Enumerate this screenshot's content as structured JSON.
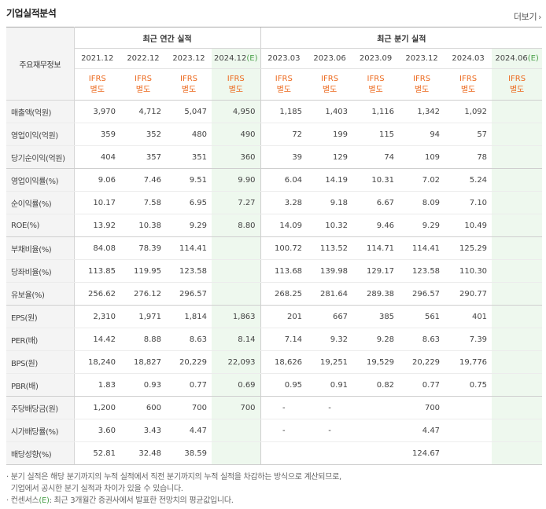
{
  "title": "기업실적분석",
  "more": {
    "label": "더보기",
    "icon": "chevron-right-icon"
  },
  "header": {
    "label": "주요재무정보",
    "annual_group": "최근 연간 실적",
    "quarter_group": "최근 분기 실적",
    "periods": [
      "2021.12",
      "2022.12",
      "2023.12",
      "2024.12",
      "2023.03",
      "2023.06",
      "2023.09",
      "2023.12",
      "2024.03",
      "2024.06"
    ],
    "estimate_mark": "(E)",
    "ifrs_line1": "IFRS",
    "ifrs_line2": "별도"
  },
  "rows": [
    {
      "label": "매출액(억원)",
      "values": [
        "3,970",
        "4,712",
        "5,047",
        "4,950",
        "1,185",
        "1,403",
        "1,116",
        "1,342",
        "1,092",
        ""
      ]
    },
    {
      "label": "영업이익(억원)",
      "values": [
        "359",
        "352",
        "480",
        "490",
        "72",
        "199",
        "115",
        "94",
        "57",
        ""
      ]
    },
    {
      "label": "당기순이익(억원)",
      "values": [
        "404",
        "357",
        "351",
        "360",
        "39",
        "129",
        "74",
        "109",
        "78",
        ""
      ]
    },
    {
      "label": "영업이익률(%)",
      "values": [
        "9.06",
        "7.46",
        "9.51",
        "9.90",
        "6.04",
        "14.19",
        "10.31",
        "7.02",
        "5.24",
        ""
      ]
    },
    {
      "label": "순이익률(%)",
      "values": [
        "10.17",
        "7.58",
        "6.95",
        "7.27",
        "3.28",
        "9.18",
        "6.67",
        "8.09",
        "7.10",
        ""
      ]
    },
    {
      "label": "ROE(%)",
      "values": [
        "13.92",
        "10.38",
        "9.29",
        "8.80",
        "14.09",
        "10.32",
        "9.46",
        "9.29",
        "10.49",
        ""
      ]
    },
    {
      "label": "부채비율(%)",
      "values": [
        "84.08",
        "78.39",
        "114.41",
        "",
        "100.72",
        "113.52",
        "114.71",
        "114.41",
        "125.29",
        ""
      ]
    },
    {
      "label": "당좌비율(%)",
      "values": [
        "113.85",
        "119.95",
        "123.58",
        "",
        "113.68",
        "139.98",
        "129.17",
        "123.58",
        "110.30",
        ""
      ]
    },
    {
      "label": "유보율(%)",
      "values": [
        "256.62",
        "276.12",
        "296.57",
        "",
        "268.25",
        "281.64",
        "289.38",
        "296.57",
        "290.77",
        ""
      ]
    },
    {
      "label": "EPS(원)",
      "values": [
        "2,310",
        "1,971",
        "1,814",
        "1,863",
        "201",
        "667",
        "385",
        "561",
        "401",
        ""
      ]
    },
    {
      "label": "PER(배)",
      "values": [
        "14.42",
        "8.88",
        "8.63",
        "8.14",
        "7.14",
        "9.32",
        "9.28",
        "8.63",
        "7.39",
        ""
      ]
    },
    {
      "label": "BPS(원)",
      "values": [
        "18,240",
        "18,827",
        "20,229",
        "22,093",
        "18,626",
        "19,251",
        "19,529",
        "20,229",
        "19,776",
        ""
      ]
    },
    {
      "label": "PBR(배)",
      "values": [
        "1.83",
        "0.93",
        "0.77",
        "0.69",
        "0.95",
        "0.91",
        "0.82",
        "0.77",
        "0.75",
        ""
      ]
    },
    {
      "label": "주당배당금(원)",
      "values": [
        "1,200",
        "600",
        "700",
        "700",
        "-",
        "-",
        "",
        "700",
        "",
        ""
      ]
    },
    {
      "label": "시가배당률(%)",
      "values": [
        "3.60",
        "3.43",
        "4.47",
        "",
        "-",
        "-",
        "",
        "4.47",
        "",
        ""
      ]
    },
    {
      "label": "배당성향(%)",
      "values": [
        "52.81",
        "32.48",
        "38.59",
        "",
        "",
        "",
        "",
        "124.67",
        "",
        ""
      ]
    }
  ],
  "notes": {
    "line1": "분기 실적은 해당 분기까지의 누적 실적에서 직전 분기까지의 누적 실적을 차감하는 방식으로 계산되므로,",
    "line2": "기업에서 공시한 분기 실적과 차이가 있을 수 있습니다.",
    "line3_prefix": "컨센서스",
    "line3_mark": "(E)",
    "line3_suffix": ": 최근 3개월간 증권사에서 발표한 전망치의 평균값입니다."
  },
  "colors": {
    "ifrs": "#ec6a1f",
    "estimate": "#4aa04a",
    "estimate_bg": "#eef8ee",
    "label_bg": "#f4f4f4"
  }
}
